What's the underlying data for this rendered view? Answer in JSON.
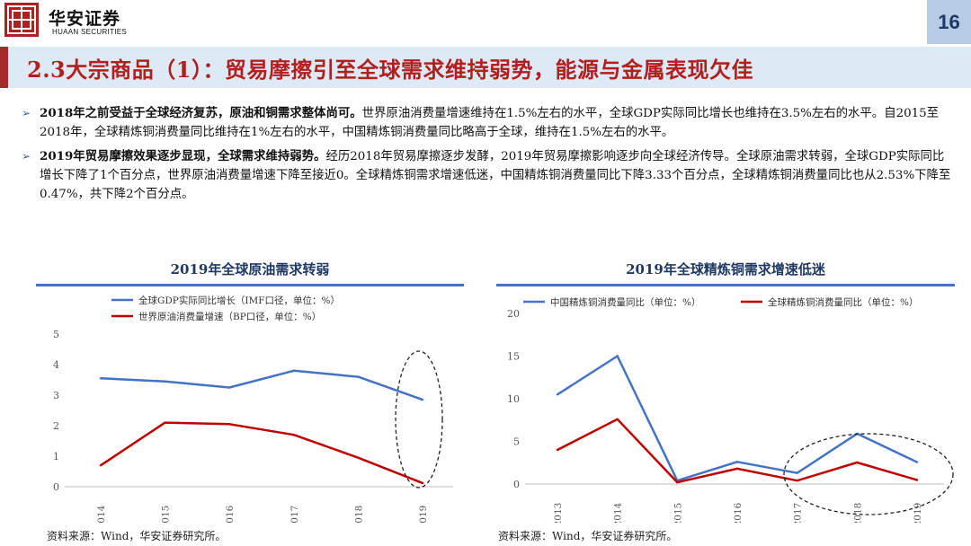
{
  "brand": {
    "name_cn": "华安证券",
    "name_en": "HUAAN SECURITIES",
    "accent_color": "#b11f1f"
  },
  "page_number": "16",
  "title": "2.3大宗商品（1）：贸易摩擦引至全球需求维持弱势，能源与金属表现欠佳",
  "bullets": [
    {
      "bold": "2018年之前受益于全球经济复苏，原油和铜需求整体尚可。",
      "text": "世界原油消费量增速维持在1.5%左右的水平，全球GDP实际同比增长也维持在3.5%左右的水平。自2015至2018年，全球精炼铜消费量同比维持在1%左右的水平，中国精炼铜消费量同比略高于全球，维持在1.5%左右的水平。"
    },
    {
      "bold": "2019年贸易摩擦效果逐步显现，全球需求维持弱势。",
      "text": "经历2018年贸易摩擦逐步发酵，2019年贸易摩擦影响逐步向全球经济传导。全球原油需求转弱，全球GDP实际同比增长下降了1个百分点，世界原油消费量增速下降至接近0。全球精炼铜需求增速低迷，中国精炼铜消费量同比下降3.33个百分点，全球精炼铜消费量同比也从2.53%下降至0.47%，共下降2个百分点。"
    }
  ],
  "chart_data": [
    {
      "type": "line",
      "title": "2019年全球原油需求转弱",
      "categories": [
        "2014",
        "2015",
        "2016",
        "2017",
        "2018",
        "2019"
      ],
      "series": [
        {
          "name": "全球GDP实际同比增长（IMF口径，单位：%）",
          "color": "#4472c4",
          "values": [
            3.55,
            3.45,
            3.25,
            3.8,
            3.6,
            2.85
          ]
        },
        {
          "name": "世界原油消费量增速（BP口径，单位：%）",
          "color": "#c00000",
          "values": [
            0.7,
            2.1,
            2.05,
            1.7,
            0.95,
            0.12
          ]
        }
      ],
      "ylim": [
        0,
        5
      ],
      "yticks": [
        "0",
        "1",
        "2",
        "3",
        "4",
        "5"
      ],
      "source": "资料来源：Wind，华安证券研究所。"
    },
    {
      "type": "line",
      "title": "2019年全球精炼铜需求增速低迷",
      "categories": [
        "2013",
        "2014",
        "2015",
        "2016",
        "2017",
        "2018",
        "2019"
      ],
      "series": [
        {
          "name": "中国精炼铜消费量同比（单位：%）",
          "color": "#4472c4",
          "values": [
            10.5,
            15.0,
            0.4,
            2.6,
            1.3,
            5.9,
            2.57
          ]
        },
        {
          "name": "全球精炼铜消费量同比（单位：%）",
          "color": "#c00000",
          "values": [
            4.0,
            7.6,
            0.2,
            1.8,
            0.4,
            2.53,
            0.47
          ]
        }
      ],
      "ylim": [
        0,
        20
      ],
      "yticks": [
        "0",
        "5",
        "10",
        "15",
        "20"
      ],
      "source": "资料来源：Wind，华安证券研究所。"
    }
  ]
}
